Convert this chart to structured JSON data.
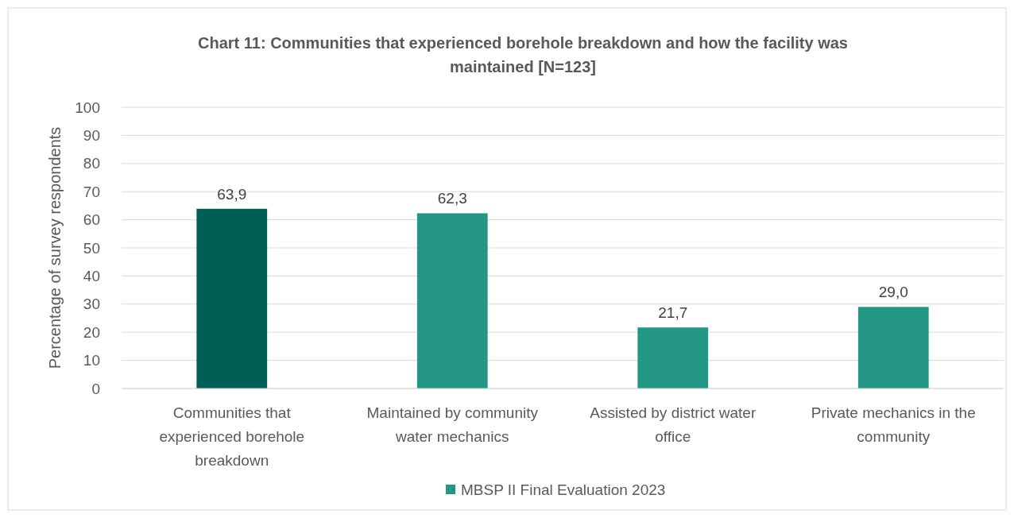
{
  "chart_data": {
    "type": "bar",
    "title": "Chart 11: Communities that experienced borehole breakdown and how the facility was maintained [N=123]",
    "ylabel": "Percentage of survey respondents",
    "categories": [
      "Communities that experienced borehole breakdown",
      "Maintained by community water mechanics",
      "Assisted by district water office",
      "Private mechanics in the community"
    ],
    "series": [
      {
        "name": "MBSP II Final Evaluation 2023",
        "color": "#239784",
        "colors": [
          "#005f55",
          "#239784",
          "#239784",
          "#239784"
        ],
        "values": [
          63.9,
          62.3,
          21.7,
          29.0
        ],
        "value_labels": [
          "63,9",
          "62,3",
          "21,7",
          "29,0"
        ]
      }
    ],
    "ylim": [
      0,
      100
    ],
    "yticks": [
      0,
      10,
      20,
      30,
      40,
      50,
      60,
      70,
      80,
      90,
      100
    ],
    "grid": "y",
    "legend": "bottom"
  }
}
